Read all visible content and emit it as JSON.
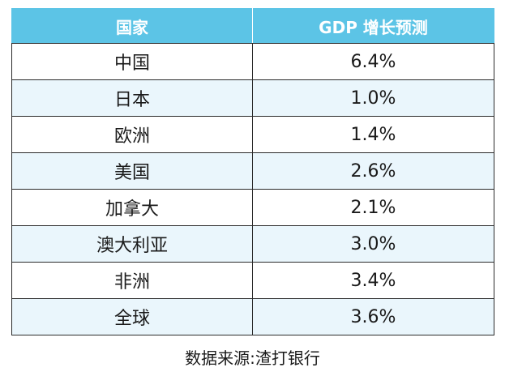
{
  "chart_data": {
    "type": "table",
    "columns": [
      "国家",
      "GDP 增长预测"
    ],
    "rows": [
      {
        "country": "中国",
        "growth": "6.4%",
        "value": 6.4
      },
      {
        "country": "日本",
        "growth": "1.0%",
        "value": 1.0
      },
      {
        "country": "欧洲",
        "growth": "1.4%",
        "value": 1.4
      },
      {
        "country": "美国",
        "growth": "2.6%",
        "value": 2.6
      },
      {
        "country": "加拿大",
        "growth": "2.1%",
        "value": 2.1
      },
      {
        "country": "澳大利亚",
        "growth": "3.0%",
        "value": 3.0
      },
      {
        "country": "非洲",
        "growth": "3.4%",
        "value": 3.4
      },
      {
        "country": "全球",
        "growth": "3.6%",
        "value": 3.6
      }
    ],
    "source": "数据来源:渣打银行"
  },
  "colors": {
    "header_bg": "#5cc4e6",
    "header_text": "#ffffff",
    "row_alt_bg": "#eaf6fc",
    "border": "#2b2b2b"
  }
}
